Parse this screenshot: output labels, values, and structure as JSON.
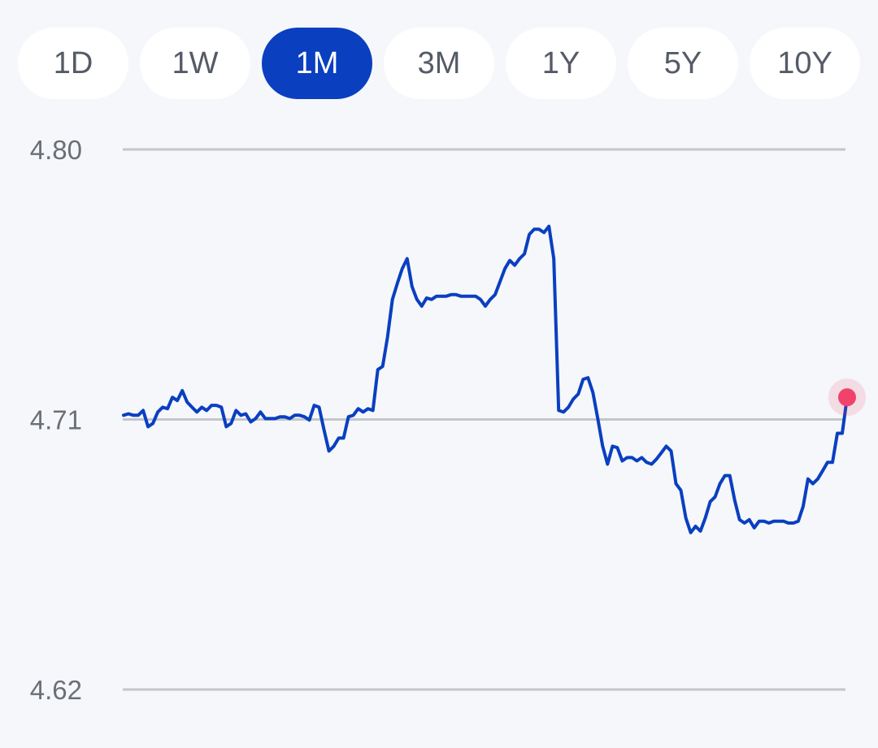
{
  "range_tabs": [
    "1D",
    "1W",
    "1M",
    "3M",
    "1Y",
    "5Y",
    "10Y"
  ],
  "active_tab": "1M",
  "colors": {
    "line": "#0a3fc0",
    "active_tab_bg": "#0a3fc0",
    "current_point": "#f0426a",
    "gridline": "#c4c6ca",
    "tick_text": "#6b6f76",
    "background": "#f5f7fa"
  },
  "chart_data": {
    "type": "line",
    "title": "",
    "xlabel": "",
    "ylabel": "",
    "ylim": [
      4.62,
      4.8
    ],
    "y_ticks": [
      "4.80",
      "4.71",
      "4.62"
    ],
    "y_tick_values": [
      4.8,
      4.71,
      4.62
    ],
    "grid": true,
    "current_point_marker": true,
    "series": [
      {
        "values": [
          4.7114,
          4.7119,
          4.7114,
          4.7114,
          4.713,
          4.7076,
          4.7087,
          4.7125,
          4.7141,
          4.7136,
          4.7174,
          4.7163,
          4.7196,
          4.7158,
          4.7141,
          4.7125,
          4.7141,
          4.713,
          4.7147,
          4.7147,
          4.7141,
          4.7076,
          4.7087,
          4.713,
          4.7114,
          4.7119,
          4.7092,
          4.7103,
          4.7125,
          4.7103,
          4.7103,
          4.7103,
          4.7109,
          4.7109,
          4.7103,
          4.7114,
          4.7114,
          4.7109,
          4.7098,
          4.7147,
          4.7141,
          4.7065,
          4.6995,
          4.7011,
          4.7038,
          4.7038,
          4.7109,
          4.7114,
          4.7136,
          4.7125,
          4.7136,
          4.713,
          4.7266,
          4.7277,
          4.7375,
          4.75,
          4.7554,
          4.7603,
          4.7636,
          4.7543,
          4.75,
          4.7478,
          4.7505,
          4.75,
          4.7511,
          4.7511,
          4.7511,
          4.7516,
          4.7516,
          4.7511,
          4.7511,
          4.7511,
          4.7511,
          4.75,
          4.7478,
          4.75,
          4.7516,
          4.7559,
          4.7603,
          4.763,
          4.7614,
          4.7636,
          4.7652,
          4.7717,
          4.7734,
          4.7734,
          4.7723,
          4.7744,
          4.7636,
          4.713,
          4.7125,
          4.7141,
          4.7168,
          4.7185,
          4.7234,
          4.7239,
          4.719,
          4.7103,
          4.7011,
          4.6951,
          4.7011,
          4.7006,
          4.6962,
          4.6973,
          4.6973,
          4.6962,
          4.6973,
          4.6957,
          4.6951,
          4.6968,
          4.6989,
          4.7011,
          4.6995,
          4.6886,
          4.6864,
          4.6772,
          4.6723,
          4.6744,
          4.6728,
          4.6772,
          4.6826,
          4.6842,
          4.6886,
          4.6913,
          4.6913,
          4.6831,
          4.6766,
          4.6755,
          4.6766,
          4.6739,
          4.6761,
          4.6761,
          4.6755,
          4.6761,
          4.6761,
          4.6761,
          4.6755,
          4.6755,
          4.6761,
          4.681,
          4.6902,
          4.6886,
          4.6902,
          4.6929,
          4.6957,
          4.6957,
          4.7054,
          4.7054,
          4.7174
        ]
      }
    ],
    "x_tick_labels": []
  }
}
